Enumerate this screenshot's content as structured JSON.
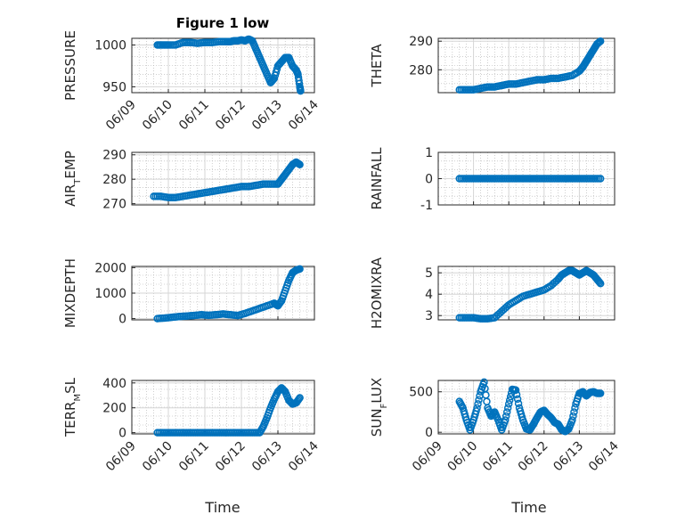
{
  "figure": {
    "title": "Figure 1 low",
    "xlabel": "Time",
    "marker_color": "#0072BD"
  },
  "chart_data": [
    {
      "type": "scatter",
      "ylabel_parts": [
        "PRESSURE"
      ],
      "ylim": [
        943,
        1008
      ],
      "yticks": [
        950,
        1000
      ],
      "xticks": [
        "06/09",
        "06/10",
        "06/11",
        "06/12",
        "06/13",
        "06/14"
      ],
      "xlim": [
        0,
        5
      ],
      "x": [
        0.7,
        0.85,
        1.0,
        1.2,
        1.4,
        1.6,
        1.8,
        2.0,
        2.2,
        2.4,
        2.6,
        2.7,
        2.8,
        2.9,
        3.0,
        3.1,
        3.2,
        3.3,
        3.4,
        3.5,
        3.6,
        3.7,
        3.8,
        3.9,
        4.0,
        4.1,
        4.2,
        4.3,
        4.4,
        4.5,
        4.55,
        4.6,
        4.62
      ],
      "y": [
        1000,
        1000,
        1000,
        1000,
        1003,
        1003,
        1002,
        1003,
        1003,
        1004,
        1004,
        1004,
        1005,
        1005,
        1006,
        1005,
        1007,
        1005,
        995,
        985,
        975,
        965,
        955,
        960,
        975,
        980,
        985,
        985,
        975,
        970,
        965,
        950,
        945
      ]
    },
    {
      "type": "scatter",
      "ylabel_parts": [
        "THETA"
      ],
      "ylim": [
        272,
        291
      ],
      "yticks": [
        280,
        290
      ],
      "xticks": [],
      "xlim": [
        0,
        5
      ],
      "x": [
        0.6,
        0.8,
        1.0,
        1.2,
        1.4,
        1.6,
        1.8,
        2.0,
        2.2,
        2.4,
        2.6,
        2.8,
        3.0,
        3.2,
        3.4,
        3.6,
        3.8,
        4.0,
        4.1,
        4.2,
        4.3,
        4.4,
        4.5,
        4.6
      ],
      "y": [
        273,
        273,
        273,
        273.5,
        274,
        274,
        274.5,
        275,
        275,
        275.5,
        276,
        276.5,
        276.5,
        277,
        277,
        277.5,
        278,
        279.5,
        281,
        283,
        285,
        287,
        289,
        290
      ]
    },
    {
      "type": "scatter",
      "ylabel_parts": [
        "AIR",
        "T",
        "EMP"
      ],
      "ylim": [
        269.5,
        291
      ],
      "yticks": [
        270,
        280,
        290
      ],
      "xticks": [],
      "xlim": [
        0,
        5
      ],
      "x": [
        0.6,
        0.8,
        1.0,
        1.2,
        1.4,
        1.6,
        1.8,
        2.0,
        2.2,
        2.4,
        2.6,
        2.8,
        3.0,
        3.2,
        3.4,
        3.6,
        3.8,
        4.0,
        4.1,
        4.2,
        4.3,
        4.4,
        4.5,
        4.6
      ],
      "y": [
        273,
        273,
        272.5,
        272.5,
        273,
        273.5,
        274,
        274.5,
        275,
        275.5,
        276,
        276.5,
        277,
        277,
        277.5,
        278,
        278,
        278,
        280,
        282,
        284,
        286,
        287,
        286
      ]
    },
    {
      "type": "scatter",
      "ylabel_parts": [
        "RAINFALL"
      ],
      "ylim": [
        -1,
        1
      ],
      "yticks": [
        -1,
        0,
        1
      ],
      "xticks": [],
      "xlim": [
        0,
        5
      ],
      "x": [
        0.6,
        0.8,
        1.0,
        1.2,
        1.4,
        1.6,
        1.8,
        2.0,
        2.2,
        2.4,
        2.6,
        2.8,
        3.0,
        3.2,
        3.4,
        3.6,
        3.8,
        4.0,
        4.2,
        4.4,
        4.6
      ],
      "y": [
        0,
        0,
        0,
        0,
        0,
        0,
        0,
        0,
        0,
        0,
        0,
        0,
        0,
        0,
        0,
        0,
        0,
        0,
        0,
        0,
        0
      ]
    },
    {
      "type": "scatter",
      "ylabel_parts": [
        "MIXDEPTH"
      ],
      "ylim": [
        -50,
        2050
      ],
      "yticks": [
        0,
        1000,
        2000
      ],
      "xticks": [],
      "xlim": [
        0,
        5
      ],
      "x": [
        0.7,
        0.9,
        1.1,
        1.3,
        1.5,
        1.7,
        1.9,
        2.1,
        2.3,
        2.5,
        2.7,
        2.9,
        3.1,
        3.3,
        3.5,
        3.7,
        3.9,
        4.0,
        4.1,
        4.2,
        4.3,
        4.4,
        4.5,
        4.6
      ],
      "y": [
        0,
        20,
        50,
        80,
        100,
        120,
        150,
        130,
        150,
        180,
        150,
        120,
        200,
        300,
        400,
        500,
        600,
        500,
        700,
        1100,
        1500,
        1800,
        1900,
        1950
      ]
    },
    {
      "type": "scatter",
      "ylabel_parts": [
        "H2OMIXRA"
      ],
      "ylim": [
        2.8,
        5.3
      ],
      "yticks": [
        3,
        4,
        5
      ],
      "xticks": [],
      "xlim": [
        0,
        5
      ],
      "x": [
        0.6,
        0.8,
        1.0,
        1.2,
        1.4,
        1.6,
        1.8,
        2.0,
        2.2,
        2.4,
        2.6,
        2.8,
        3.0,
        3.2,
        3.4,
        3.5,
        3.6,
        3.7,
        3.8,
        3.9,
        4.0,
        4.1,
        4.2,
        4.3,
        4.4,
        4.5,
        4.6
      ],
      "y": [
        2.9,
        2.9,
        2.9,
        2.85,
        2.85,
        2.9,
        3.2,
        3.5,
        3.7,
        3.9,
        4.0,
        4.1,
        4.2,
        4.4,
        4.7,
        4.9,
        5.0,
        5.1,
        5.1,
        5.0,
        4.9,
        5.0,
        5.1,
        5.0,
        4.9,
        4.7,
        4.5
      ]
    },
    {
      "type": "scatter",
      "ylabel_parts": [
        "TERR",
        "M",
        "SL"
      ],
      "ylim": [
        -10,
        420
      ],
      "yticks": [
        0,
        200,
        400
      ],
      "xticks": [
        "06/09",
        "06/10",
        "06/11",
        "06/12",
        "06/13",
        "06/14"
      ],
      "xlim": [
        0,
        5
      ],
      "x": [
        0.7,
        0.9,
        1.1,
        1.3,
        1.5,
        1.7,
        1.9,
        2.1,
        2.3,
        2.5,
        2.7,
        2.9,
        3.1,
        3.3,
        3.5,
        3.6,
        3.7,
        3.8,
        3.9,
        4.0,
        4.1,
        4.2,
        4.3,
        4.4,
        4.5,
        4.6
      ],
      "y": [
        0,
        0,
        0,
        0,
        0,
        0,
        0,
        0,
        0,
        0,
        0,
        0,
        0,
        0,
        0,
        50,
        120,
        200,
        270,
        330,
        360,
        330,
        260,
        230,
        240,
        280
      ]
    },
    {
      "type": "scatter",
      "ylabel_parts": [
        "SUN",
        "F",
        "LUX"
      ],
      "ylim": [
        -20,
        640
      ],
      "yticks": [
        0,
        500
      ],
      "xticks": [
        "06/09",
        "06/10",
        "06/11",
        "06/12",
        "06/13",
        "06/14"
      ],
      "xlim": [
        0,
        5
      ],
      "x": [
        0.6,
        0.7,
        0.8,
        0.9,
        1.0,
        1.1,
        1.2,
        1.3,
        1.4,
        1.5,
        1.6,
        1.7,
        1.8,
        1.9,
        2.0,
        2.1,
        2.2,
        2.3,
        2.4,
        2.5,
        2.6,
        2.7,
        2.8,
        2.9,
        3.0,
        3.1,
        3.2,
        3.3,
        3.4,
        3.5,
        3.6,
        3.7,
        3.8,
        3.9,
        4.0,
        4.1,
        4.2,
        4.3,
        4.4,
        4.5,
        4.6
      ],
      "y": [
        380,
        300,
        150,
        30,
        150,
        300,
        500,
        620,
        300,
        200,
        250,
        150,
        30,
        150,
        350,
        530,
        520,
        300,
        150,
        40,
        30,
        100,
        180,
        250,
        270,
        220,
        180,
        120,
        100,
        30,
        10,
        40,
        150,
        350,
        480,
        500,
        450,
        490,
        500,
        480,
        480
      ]
    }
  ]
}
